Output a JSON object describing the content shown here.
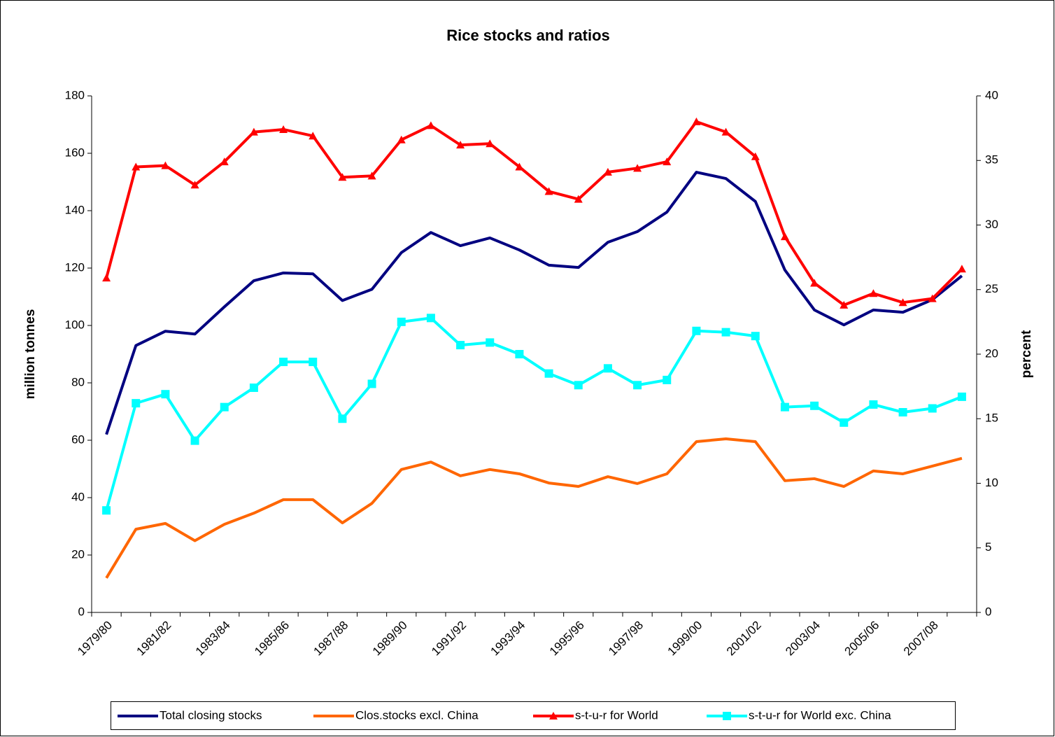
{
  "chart_data": {
    "type": "line",
    "title": "Rice stocks and ratios",
    "ylabel": "million tonnes",
    "y2label": "percent",
    "categories": [
      "1979/80",
      null,
      "1981/82",
      null,
      "1983/84",
      null,
      "1985/86",
      null,
      "1987/88",
      null,
      "1989/90",
      null,
      "1991/92",
      null,
      "1993/94",
      null,
      "1995/96",
      null,
      "1997/98",
      null,
      "1999/00",
      null,
      "2001/02",
      null,
      "2003/04",
      null,
      "2005/06",
      null,
      "2007/08",
      null
    ],
    "ylim": [
      0,
      180
    ],
    "yticks": [
      0,
      20,
      40,
      60,
      80,
      100,
      120,
      140,
      160,
      180
    ],
    "y2lim": [
      0,
      40
    ],
    "y2ticks": [
      0,
      5,
      10,
      15,
      20,
      25,
      30,
      35,
      40
    ],
    "legend": "bottom",
    "series": [
      {
        "name": "Total closing stocks",
        "color": "#000080",
        "values": [
          62,
          93,
          98,
          97,
          106.5,
          115.6,
          118.3,
          118,
          108.7,
          112.6,
          125.4,
          132.4,
          127.8,
          130.5,
          126.3,
          121,
          120.2,
          129,
          132.7,
          139.5,
          153.4,
          151.2,
          143.2,
          119.3,
          105.4,
          100.2,
          105.4,
          104.6,
          109,
          117.3
        ]
      },
      {
        "name": "Clos.stocks excl. China",
        "color": "#ff6600",
        "values": [
          12,
          29,
          31,
          25,
          30.7,
          34.6,
          39.3,
          39.3,
          31.2,
          38,
          49.8,
          52.4,
          47.6,
          49.8,
          48.3,
          45.1,
          43.9,
          47.3,
          44.9,
          48.3,
          59.5,
          60.5,
          59.5,
          45.9,
          46.6,
          43.9,
          49.3,
          48.3,
          51,
          53.7
        ]
      },
      {
        "name": "s-t-u-r for World",
        "color": "#ff0000",
        "axis": "y2",
        "marker": "triangle",
        "values": [
          25.9,
          34.5,
          34.6,
          33.1,
          34.9,
          37.2,
          37.4,
          36.9,
          33.7,
          33.8,
          36.6,
          37.7,
          36.2,
          36.3,
          34.5,
          32.6,
          32,
          34.1,
          34.4,
          34.9,
          38,
          37.2,
          35.3,
          29.1,
          25.5,
          23.8,
          24.7,
          24,
          24.3,
          26.6
        ]
      },
      {
        "name": "s-t-u-r for World exc. China",
        "color": "#00ffff",
        "axis": "y2",
        "marker": "square",
        "values": [
          7.9,
          16.2,
          16.9,
          13.3,
          15.9,
          17.4,
          19.4,
          19.4,
          15,
          17.7,
          22.5,
          22.8,
          20.7,
          20.9,
          20,
          18.5,
          17.6,
          18.9,
          17.6,
          18,
          21.8,
          21.7,
          21.4,
          15.9,
          16,
          14.7,
          16.1,
          15.5,
          15.8,
          16.7
        ]
      }
    ]
  }
}
